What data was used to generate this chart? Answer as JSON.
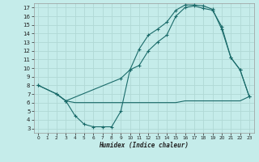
{
  "xlabel": "Humidex (Indice chaleur)",
  "background_color": "#c5ecea",
  "grid_color": "#b0d8d5",
  "line_color": "#1a6b6a",
  "xlim": [
    -0.5,
    23.5
  ],
  "ylim": [
    2.5,
    17.5
  ],
  "xticks": [
    0,
    1,
    2,
    3,
    4,
    5,
    6,
    7,
    8,
    9,
    10,
    11,
    12,
    13,
    14,
    15,
    16,
    17,
    18,
    19,
    20,
    21,
    22,
    23
  ],
  "yticks": [
    3,
    4,
    5,
    6,
    7,
    8,
    9,
    10,
    11,
    12,
    13,
    14,
    15,
    16,
    17
  ],
  "line1_x": [
    0,
    2,
    3,
    4,
    5,
    6,
    7,
    8,
    9,
    10,
    11,
    12,
    13,
    14,
    15,
    16,
    17,
    18,
    19,
    20,
    21,
    22,
    23
  ],
  "line1_y": [
    8.0,
    7.0,
    6.2,
    4.5,
    3.5,
    3.2,
    3.2,
    3.2,
    5.0,
    9.8,
    12.2,
    13.8,
    14.5,
    15.3,
    16.7,
    17.3,
    17.3,
    17.2,
    16.8,
    14.5,
    11.2,
    9.8,
    6.7
  ],
  "line2_x": [
    0,
    2,
    3,
    9,
    10,
    11,
    12,
    13,
    14,
    15,
    16,
    17,
    18,
    19,
    20,
    21,
    22,
    23
  ],
  "line2_y": [
    8.0,
    7.0,
    6.2,
    8.8,
    9.8,
    10.3,
    12.0,
    13.0,
    13.8,
    16.0,
    17.0,
    17.2,
    16.9,
    16.7,
    14.8,
    11.2,
    9.8,
    6.7
  ],
  "line3_x": [
    2,
    3,
    4,
    5,
    6,
    7,
    8,
    9,
    10,
    11,
    12,
    13,
    14,
    15,
    16,
    17,
    18,
    19,
    20,
    21,
    22,
    23
  ],
  "line3_y": [
    7.0,
    6.2,
    6.0,
    6.0,
    6.0,
    6.0,
    6.0,
    6.0,
    6.0,
    6.0,
    6.0,
    6.0,
    6.0,
    6.0,
    6.2,
    6.2,
    6.2,
    6.2,
    6.2,
    6.2,
    6.2,
    6.7
  ]
}
